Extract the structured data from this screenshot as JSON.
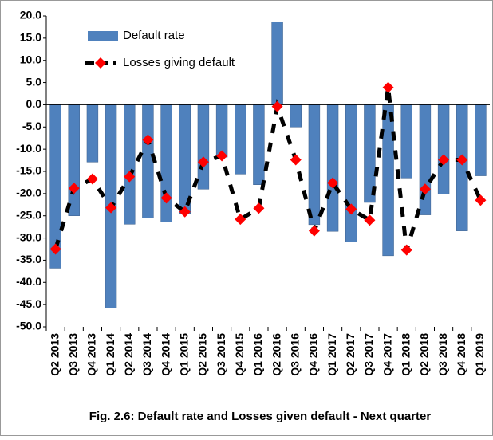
{
  "chart_data": {
    "type": "bar-line",
    "title": "Fig. 2.6: Default rate and Losses given default - Next quarter",
    "categories": [
      "Q2 2013",
      "Q3 2013",
      "Q4 2013",
      "Q1 2014",
      "Q2 2014",
      "Q3 2014",
      "Q4 2014",
      "Q1 2015",
      "Q2 2015",
      "Q3 2015",
      "Q4 2015",
      "Q1 2016",
      "Q2 2016",
      "Q3 2016",
      "Q4 2016",
      "Q1 2017",
      "Q2 2017",
      "Q3 2017",
      "Q4 2017",
      "Q1 2018",
      "Q2 2018",
      "Q3 2018",
      "Q4 2018",
      "Q1 2019"
    ],
    "series": [
      {
        "name": "Default rate",
        "type": "bar",
        "color": "#4f81bd",
        "values": [
          -36.8,
          -25,
          -12.9,
          -45.8,
          -26.9,
          -25.5,
          -26.4,
          -24.5,
          -19,
          -11.8,
          -15.6,
          -18,
          18.7,
          -5,
          -27,
          -28.5,
          -30.9,
          -22,
          -34,
          -16.5,
          -24.8,
          -20.1,
          -28.4,
          -16
        ]
      },
      {
        "name": "Losses giving default",
        "type": "line",
        "color": "#000000",
        "marker_color": "#ff0000",
        "values": [
          -32.5,
          -18.8,
          -16.7,
          -23.2,
          -16.2,
          -7.9,
          -21,
          -24.1,
          -12.9,
          -11.5,
          -25.8,
          -23.3,
          -0.4,
          -12.4,
          -28.4,
          -17.6,
          -23.5,
          -26,
          3.9,
          -32.7,
          -19,
          -12.4,
          -12.4,
          -21.5
        ]
      }
    ],
    "ylim": [
      -50,
      20
    ],
    "yticks": [
      {
        "value": -50,
        "label": "-50.0"
      },
      {
        "value": -45,
        "label": "-45.0"
      },
      {
        "value": -40,
        "label": "-40.0"
      },
      {
        "value": -35,
        "label": "-35.0"
      },
      {
        "value": -30,
        "label": "-30.0"
      },
      {
        "value": -25,
        "label": "-25.0"
      },
      {
        "value": -20,
        "label": "-20.0"
      },
      {
        "value": -15,
        "label": "-15.0"
      },
      {
        "value": -10,
        "label": "-10.0"
      },
      {
        "value": -5,
        "label": "-5.0"
      },
      {
        "value": 0,
        "label": "0.0"
      },
      {
        "value": 5,
        "label": "5.0"
      },
      {
        "value": 10,
        "label": "10.0"
      },
      {
        "value": 15,
        "label": "15.0"
      },
      {
        "value": 20,
        "label": "20.0"
      }
    ],
    "grid": false
  }
}
